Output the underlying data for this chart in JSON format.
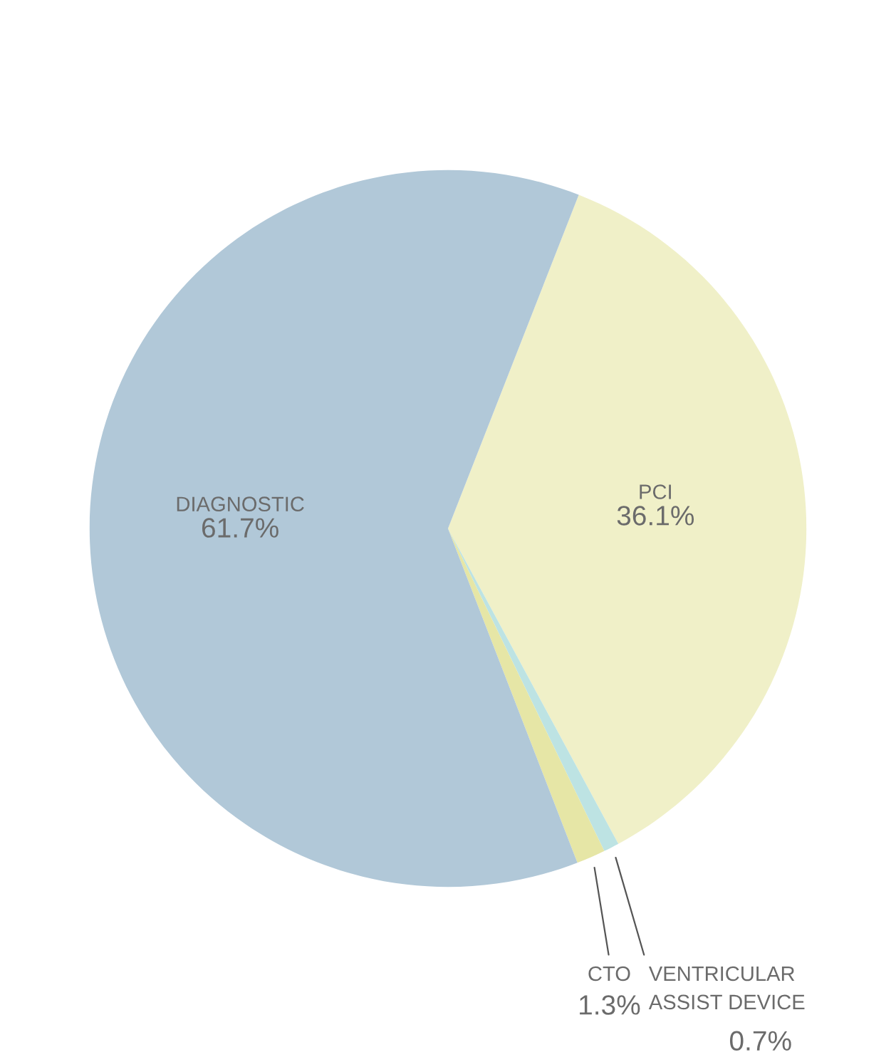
{
  "chart_data": {
    "type": "pie",
    "categories": [
      "PCI",
      "VENTRICULAR\nASSIST DEVICE",
      "CTO",
      "DIAGNOSTIC"
    ],
    "values": [
      36.1,
      0.7,
      1.3,
      61.7
    ],
    "value_labels": [
      "36.1%",
      "0.7%",
      "1.3%",
      "61.7%"
    ],
    "colors": [
      "#f0f0c8",
      "#bde3e3",
      "#e6e6a6",
      "#b1c8d8"
    ],
    "legend": false
  }
}
